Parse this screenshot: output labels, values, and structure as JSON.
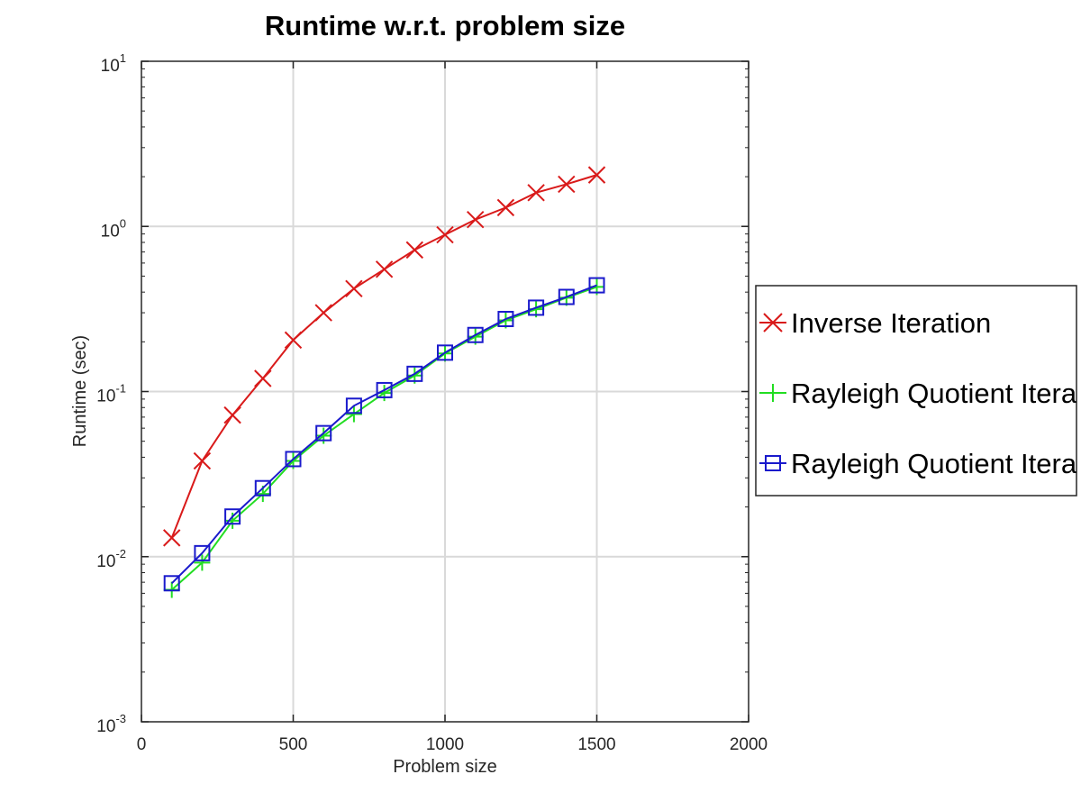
{
  "chart_data": {
    "type": "line",
    "title": "Runtime w.r.t. problem size",
    "xlabel": "Problem size",
    "ylabel": "Runtime (sec)",
    "xlim": [
      0,
      2000
    ],
    "ylim": [
      0.001,
      10
    ],
    "yscale": "log",
    "grid": true,
    "legend_position": "right",
    "x_ticks": [
      "0",
      "500",
      "1000",
      "1500",
      "2000"
    ],
    "y_ticks": [
      {
        "base": "10",
        "exp": "-3"
      },
      {
        "base": "10",
        "exp": "-2"
      },
      {
        "base": "10",
        "exp": "-1"
      },
      {
        "base": "10",
        "exp": "0"
      },
      {
        "base": "10",
        "exp": "1"
      }
    ],
    "x": [
      100,
      200,
      300,
      400,
      500,
      600,
      700,
      800,
      900,
      1000,
      1100,
      1200,
      1300,
      1400,
      1500
    ],
    "series": [
      {
        "name": "Inverse Iteration",
        "color": "#d91a1a",
        "marker": "x",
        "values": [
          0.013,
          0.038,
          0.072,
          0.12,
          0.205,
          0.3,
          0.42,
          0.55,
          0.72,
          0.89,
          1.1,
          1.3,
          1.6,
          1.8,
          2.05
        ]
      },
      {
        "name": "Rayleigh Quotient Itera",
        "color": "#22dd22",
        "marker": "plus",
        "values": [
          0.0063,
          0.0092,
          0.0165,
          0.024,
          0.038,
          0.054,
          0.073,
          0.098,
          0.125,
          0.17,
          0.215,
          0.27,
          0.315,
          0.37,
          0.43
        ]
      },
      {
        "name": "Rayleigh Quotient Itera",
        "color": "#1a1acc",
        "marker": "square",
        "values": [
          0.0069,
          0.0105,
          0.0175,
          0.026,
          0.039,
          0.056,
          0.082,
          0.102,
          0.128,
          0.172,
          0.22,
          0.275,
          0.322,
          0.374,
          0.44
        ]
      }
    ]
  }
}
